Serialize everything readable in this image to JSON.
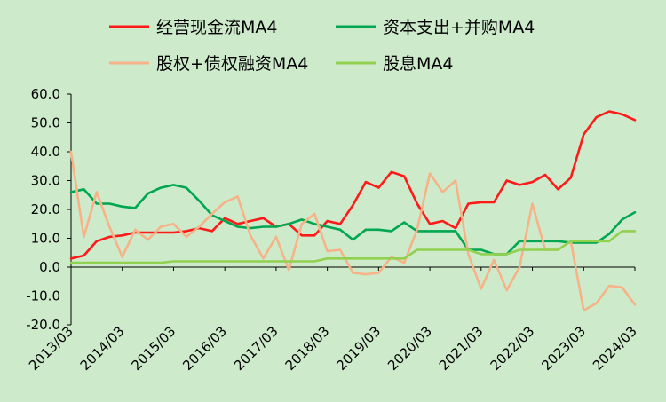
{
  "chart_data": {
    "type": "line",
    "title": "",
    "xlabel": "",
    "ylabel": "",
    "ylim": [
      -20,
      60
    ],
    "yticks": [
      "60.0",
      "50.0",
      "40.0",
      "30.0",
      "20.0",
      "10.0",
      "0.0",
      "-10.0",
      "-20.0"
    ],
    "ytick_values": [
      60,
      50,
      40,
      30,
      20,
      10,
      0,
      -10,
      -20
    ],
    "xtick_labels": [
      "2013/03",
      "2014/03",
      "2015/03",
      "2016/03",
      "2017/03",
      "2018/03",
      "2019/03",
      "2020/03",
      "2021/03",
      "2022/03",
      "2023/03",
      "2024/03"
    ],
    "x": [
      "2013/03",
      "2013/06",
      "2013/09",
      "2013/12",
      "2014/03",
      "2014/06",
      "2014/09",
      "2014/12",
      "2015/03",
      "2015/06",
      "2015/09",
      "2015/12",
      "2016/03",
      "2016/06",
      "2016/09",
      "2016/12",
      "2017/03",
      "2017/06",
      "2017/09",
      "2017/12",
      "2018/03",
      "2018/06",
      "2018/09",
      "2018/12",
      "2019/03",
      "2019/06",
      "2019/09",
      "2019/12",
      "2020/03",
      "2020/06",
      "2020/09",
      "2020/12",
      "2021/03",
      "2021/06",
      "2021/09",
      "2021/12",
      "2022/03",
      "2022/06",
      "2022/09",
      "2022/12",
      "2023/03",
      "2023/06",
      "2023/09",
      "2023/12",
      "2024/03"
    ],
    "grid": false,
    "legend_position": "top",
    "series": [
      {
        "name": "经营现金流MA4",
        "color": "#ff1a1a",
        "values": [
          3,
          4,
          9,
          10.5,
          11,
          12,
          12,
          12,
          12,
          12.5,
          13.5,
          12.5,
          17,
          15,
          16,
          17,
          14,
          15,
          11,
          11,
          16,
          15,
          21.5,
          29.5,
          27.5,
          33,
          31.5,
          22,
          15,
          16,
          13.5,
          22,
          22.5,
          22.5,
          30,
          28.5,
          29.5,
          32,
          27,
          31,
          46,
          52,
          54,
          53,
          51
        ]
      },
      {
        "name": "资本支出+并购MA4",
        "color": "#00a650",
        "values": [
          26,
          27,
          22,
          22,
          21,
          20.5,
          25.5,
          27.5,
          28.5,
          27.5,
          23,
          18,
          16,
          14,
          13.5,
          14,
          14,
          15,
          16.5,
          15,
          14,
          13,
          9.5,
          13,
          13,
          12.5,
          15.5,
          12.5,
          12.5,
          12.5,
          12.5,
          6,
          6,
          4.5,
          4.5,
          9,
          9,
          9,
          9,
          8.5,
          8.5,
          8.5,
          11.5,
          16.5,
          19
        ]
      },
      {
        "name": "股权+债权融资MA4",
        "color": "#f7b388",
        "values": [
          40,
          10.5,
          26,
          14,
          3.5,
          13,
          9.5,
          14,
          15,
          10.5,
          14,
          18.5,
          22.5,
          24.5,
          11,
          3,
          10.5,
          -1,
          15,
          18.5,
          5.5,
          6,
          -2,
          -2.5,
          -2,
          3.5,
          1.5,
          13,
          32.5,
          26,
          30,
          4.5,
          -7.5,
          2.5,
          -8,
          0,
          22,
          6,
          6,
          9,
          -15,
          -12.5,
          -6.5,
          -7,
          -13
        ]
      },
      {
        "name": "股息MA4",
        "color": "#92d050",
        "values": [
          1.5,
          1.5,
          1.5,
          1.5,
          1.5,
          1.5,
          1.5,
          1.5,
          2,
          2,
          2,
          2,
          2,
          2,
          2,
          2,
          2,
          2,
          2,
          2,
          3,
          3,
          3,
          3,
          3,
          3,
          3,
          6,
          6,
          6,
          6,
          6,
          4.5,
          4.5,
          4.5,
          6,
          6,
          6,
          6,
          9,
          9,
          9,
          9,
          12.5,
          12.5
        ]
      }
    ]
  }
}
